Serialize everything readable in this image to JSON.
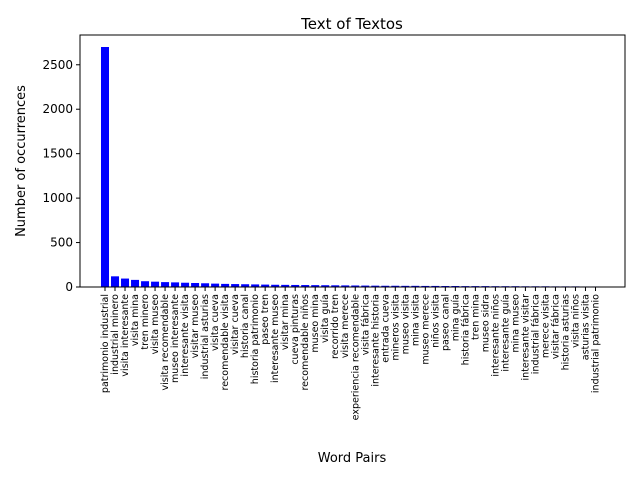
{
  "chart_data": {
    "type": "bar",
    "title": "Text of Textos",
    "xlabel": "Word Pairs",
    "ylabel": "Number of occurrences",
    "ylim": [
      0,
      2835
    ],
    "yticks": [
      0,
      500,
      1000,
      1500,
      2000,
      2500
    ],
    "grid": false,
    "bar_color": "#0000ff",
    "categories": [
      "patrimonio industrial",
      "industrial minero",
      "visita interesante",
      "visita mina",
      "tren minero",
      "visita museo",
      "visita recomendable",
      "museo interesante",
      "interesante visita",
      "visitar museo",
      "industrial asturias",
      "visita cueva",
      "recomendable visita",
      "visitar cueva",
      "historia canal",
      "historia patrimonio",
      "paseo tren",
      "interesante museo",
      "visitar mina",
      "cueva pinturas",
      "recomendable niños",
      "museo mina",
      "visita guía",
      "recorrido tren",
      "visita merece",
      "experiencia recomendable",
      "visita fábrica",
      "interesante historia",
      "entrada cueva",
      "mineros visita",
      "museo visita",
      "mina visita",
      "museo merece",
      "niños visita",
      "paseo canal",
      "mina guía",
      "historia fábrica",
      "tren mina",
      "museo sidra",
      "interesante niños",
      "interesante guía",
      "mina museo",
      "interesante visitar",
      "industrial fábrica",
      "merece visita",
      "visitar fábrica",
      "historia asturias",
      "visita niños",
      "asturias visita",
      "industrial patrimonio"
    ],
    "values": [
      2700,
      120,
      95,
      80,
      65,
      60,
      55,
      52,
      48,
      45,
      42,
      38,
      35,
      33,
      31,
      29,
      27,
      25,
      24,
      23,
      22,
      21,
      20,
      19,
      18,
      17,
      16,
      15,
      14,
      14,
      13,
      13,
      12,
      12,
      11,
      11,
      10,
      10,
      10,
      9,
      9,
      9,
      8,
      8,
      8,
      7,
      7,
      7,
      6,
      6
    ]
  }
}
